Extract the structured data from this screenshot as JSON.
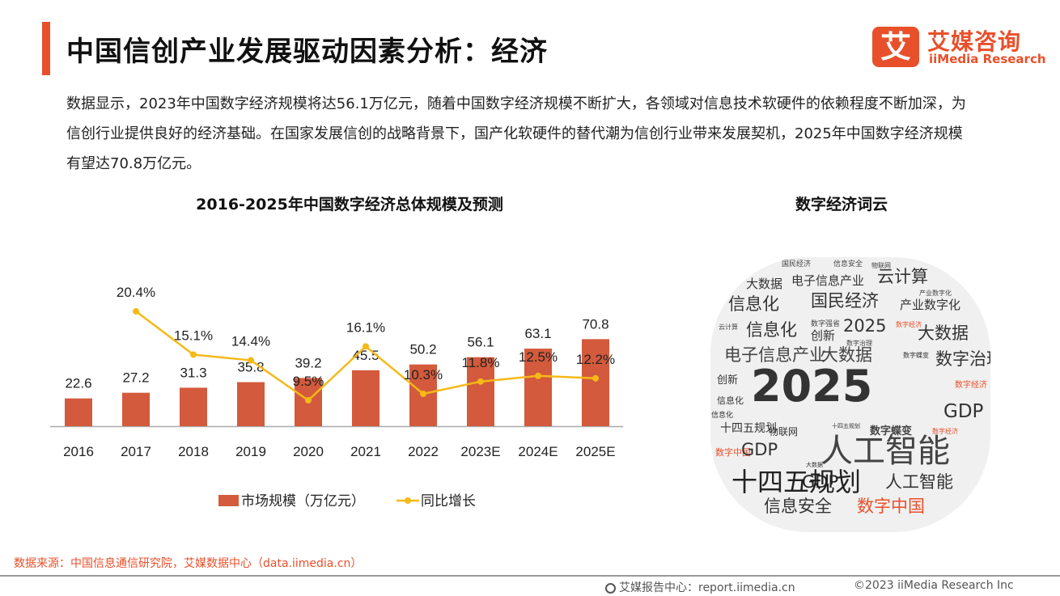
{
  "header": {
    "title": "中国信创产业发展驱动因素分析：经济",
    "logo_mark": "艾",
    "logo_cn": "艾媒咨询",
    "logo_en": "iiMedia Research"
  },
  "intro": "数据显示，2023年中国数字经济规模将达56.1万亿元，随着中国数字经济规模不断扩大，各领域对信息技术软硬件的依赖程度不断加深，为信创行业提供良好的经济基础。在国家发展信创的战略背景下，国产化软硬件的替代潮为信创行业带来发展契机，2025年中国数字经济规模有望达70.8万亿元。",
  "chart_data": {
    "type": "bar",
    "title": "2016-2025年中国数字经济总体规模及预测",
    "categories": [
      "2016",
      "2017",
      "2018",
      "2019",
      "2020",
      "2021",
      "2022",
      "2023E",
      "2024E",
      "2025E"
    ],
    "series": [
      {
        "name": "市场规模（万亿元）",
        "type": "bar",
        "color": "#d35a3c",
        "values": [
          22.6,
          27.2,
          31.3,
          35.8,
          39.2,
          45.5,
          50.2,
          56.1,
          63.1,
          70.8
        ],
        "labels": [
          "22.6",
          "27.2",
          "31.3",
          "35.8",
          "39.2",
          "45.5",
          "50.2",
          "56.1",
          "63.1",
          "70.8"
        ]
      },
      {
        "name": "同比增长",
        "type": "line",
        "color": "#f5b918",
        "values": [
          null,
          20.4,
          15.1,
          14.4,
          9.5,
          16.1,
          10.3,
          11.8,
          12.5,
          12.2
        ],
        "labels": [
          "",
          "20.4%",
          "15.1%",
          "14.4%",
          "9.5%",
          "16.1%",
          "10.3%",
          "11.8%",
          "12.5%",
          "12.2%"
        ]
      }
    ],
    "legend_position": "bottom",
    "grid": false
  },
  "cloud": {
    "title": "数字经济词云",
    "words": [
      {
        "text": "国民经济",
        "color": "#444"
      },
      {
        "text": "信息安全",
        "color": "#444"
      },
      {
        "text": "物联网",
        "color": "#444"
      },
      {
        "text": "大数据",
        "color": "#333"
      },
      {
        "text": "电子信息产业",
        "color": "#333"
      },
      {
        "text": "云计算",
        "color": "#333"
      },
      {
        "text": "产业数字化",
        "color": "#444"
      },
      {
        "text": "信息化",
        "color": "#333"
      },
      {
        "text": "国民经济",
        "color": "#333"
      },
      {
        "text": "产业数字化",
        "color": "#333"
      },
      {
        "text": "云计算",
        "color": "#444"
      },
      {
        "text": "信息化",
        "color": "#333"
      },
      {
        "text": "数字强省",
        "color": "#444"
      },
      {
        "text": "创新",
        "color": "#333"
      },
      {
        "text": "2025",
        "color": "#333"
      },
      {
        "text": "数字经济",
        "color": "#e8502b"
      },
      {
        "text": "大数据",
        "color": "#333"
      },
      {
        "text": "数字治理",
        "color": "#444"
      },
      {
        "text": "电子信息产业",
        "color": "#444"
      },
      {
        "text": "大数据",
        "color": "#444"
      },
      {
        "text": "数字蝶变",
        "color": "#333"
      },
      {
        "text": "数字治理",
        "color": "#333"
      },
      {
        "text": "创新",
        "color": "#333"
      },
      {
        "text": "2025",
        "color": "#333"
      },
      {
        "text": "数字经济",
        "color": "#e8502b"
      },
      {
        "text": "信息化",
        "color": "#333"
      },
      {
        "text": "信息化",
        "color": "#333"
      },
      {
        "text": "GDP",
        "color": "#333"
      },
      {
        "text": "十四五规划",
        "color": "#333"
      },
      {
        "text": "物联网",
        "color": "#333"
      },
      {
        "text": "十四五规划",
        "color": "#333"
      },
      {
        "text": "数字蝶变",
        "color": "#444"
      },
      {
        "text": "数字经济",
        "color": "#e8502b"
      },
      {
        "text": "数字中国",
        "color": "#e8502b"
      },
      {
        "text": "GDP",
        "color": "#333"
      },
      {
        "text": "大数据",
        "color": "#333"
      },
      {
        "text": "人工智能",
        "color": "#444"
      },
      {
        "text": "十四五规划",
        "color": "#222"
      },
      {
        "text": "GDP",
        "color": "#222"
      },
      {
        "text": "人工智能",
        "color": "#333"
      },
      {
        "text": "信息安全",
        "color": "#333"
      },
      {
        "text": "数字中国",
        "color": "#e8502b"
      },
      {
        "text": "数字强省",
        "color": "#333"
      }
    ]
  },
  "footer": {
    "source": "数据来源：中国信息通信研究院，艾媒数据中心（data.iimedia.cn）",
    "report_center": "艾媒报告中心：report.iimedia.cn",
    "copyright": "©2023  iiMedia Research  Inc"
  }
}
